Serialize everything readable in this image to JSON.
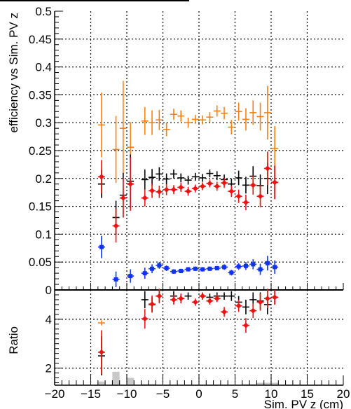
{
  "chart_data": [
    {
      "type": "scatter",
      "title": "",
      "ylabel": "efficiency vs Sim. PV z",
      "xlim": [
        -20,
        20
      ],
      "ylim": [
        0,
        0.5
      ],
      "y_ticks": [
        "0",
        "0.05",
        "0.1",
        "0.15",
        "0.2",
        "0.25",
        "0.3",
        "0.35",
        "0.4",
        "0.45",
        "0.5"
      ],
      "grid": true,
      "legend": "none",
      "series": [
        {
          "color": "#ff7f0e",
          "marker": "cross",
          "points": [
            {
              "x": -13.5,
              "y": 0.296,
              "e": 0.058
            },
            {
              "x": -11.5,
              "y": 0.252,
              "e": 0.06
            },
            {
              "x": -10.5,
              "y": 0.29,
              "e": 0.085
            },
            {
              "x": -9.5,
              "y": 0.256,
              "e": 0.045
            },
            {
              "x": -7.5,
              "y": 0.303,
              "e": 0.025
            },
            {
              "x": -6.5,
              "y": 0.3,
              "e": 0.022
            },
            {
              "x": -5.5,
              "y": 0.305,
              "e": 0.018
            },
            {
              "x": -4.5,
              "y": 0.288,
              "e": 0.012
            },
            {
              "x": -3.5,
              "y": 0.315,
              "e": 0.01
            },
            {
              "x": -2.5,
              "y": 0.312,
              "e": 0.01
            },
            {
              "x": -1.5,
              "y": 0.3,
              "e": 0.009
            },
            {
              "x": -0.5,
              "y": 0.306,
              "e": 0.008
            },
            {
              "x": 0.5,
              "y": 0.305,
              "e": 0.008
            },
            {
              "x": 1.5,
              "y": 0.31,
              "e": 0.009
            },
            {
              "x": 2.5,
              "y": 0.321,
              "e": 0.01
            },
            {
              "x": 3.5,
              "y": 0.317,
              "e": 0.011
            },
            {
              "x": 4.5,
              "y": 0.292,
              "e": 0.013
            },
            {
              "x": 5.5,
              "y": 0.32,
              "e": 0.016
            },
            {
              "x": 6.5,
              "y": 0.306,
              "e": 0.02
            },
            {
              "x": 7.5,
              "y": 0.318,
              "e": 0.022
            },
            {
              "x": 8.5,
              "y": 0.311,
              "e": 0.025
            },
            {
              "x": 9.5,
              "y": 0.318,
              "e": 0.048
            },
            {
              "x": 10.5,
              "y": 0.254,
              "e": 0.04
            }
          ]
        },
        {
          "color": "#000000",
          "marker": "cross",
          "points": [
            {
              "x": -13.5,
              "y": 0.19,
              "e": 0.025
            },
            {
              "x": -11.5,
              "y": 0.13,
              "e": 0.03
            },
            {
              "x": -10.5,
              "y": 0.17,
              "e": 0.04
            },
            {
              "x": -9.5,
              "y": 0.195,
              "e": 0.048
            },
            {
              "x": -7.5,
              "y": 0.198,
              "e": 0.018
            },
            {
              "x": -6.5,
              "y": 0.202,
              "e": 0.015
            },
            {
              "x": -5.5,
              "y": 0.208,
              "e": 0.012
            },
            {
              "x": -4.5,
              "y": 0.199,
              "e": 0.01
            },
            {
              "x": -3.5,
              "y": 0.208,
              "e": 0.008
            },
            {
              "x": -2.5,
              "y": 0.201,
              "e": 0.008
            },
            {
              "x": -1.5,
              "y": 0.197,
              "e": 0.008
            },
            {
              "x": -0.5,
              "y": 0.203,
              "e": 0.007
            },
            {
              "x": 0.5,
              "y": 0.201,
              "e": 0.007
            },
            {
              "x": 1.5,
              "y": 0.209,
              "e": 0.007
            },
            {
              "x": 2.5,
              "y": 0.205,
              "e": 0.008
            },
            {
              "x": 3.5,
              "y": 0.198,
              "e": 0.009
            },
            {
              "x": 4.5,
              "y": 0.19,
              "e": 0.01
            },
            {
              "x": 5.5,
              "y": 0.201,
              "e": 0.013
            },
            {
              "x": 6.5,
              "y": 0.188,
              "e": 0.015
            },
            {
              "x": 7.5,
              "y": 0.204,
              "e": 0.018
            },
            {
              "x": 8.5,
              "y": 0.187,
              "e": 0.02
            },
            {
              "x": 9.5,
              "y": 0.2,
              "e": 0.028
            },
            {
              "x": 10.5,
              "y": 0.193,
              "e": 0.03
            }
          ]
        },
        {
          "color": "#ee1111",
          "marker": "diamond",
          "points": [
            {
              "x": -13.5,
              "y": 0.203,
              "e": 0.03
            },
            {
              "x": -11.5,
              "y": 0.115,
              "e": 0.03
            },
            {
              "x": -10.5,
              "y": 0.165,
              "e": 0.035
            },
            {
              "x": -9.5,
              "y": 0.19,
              "e": 0.048
            },
            {
              "x": -7.5,
              "y": 0.165,
              "e": 0.015
            },
            {
              "x": -6.5,
              "y": 0.178,
              "e": 0.013
            },
            {
              "x": -5.5,
              "y": 0.176,
              "e": 0.011
            },
            {
              "x": -4.5,
              "y": 0.18,
              "e": 0.01
            },
            {
              "x": -3.5,
              "y": 0.18,
              "e": 0.008
            },
            {
              "x": -2.5,
              "y": 0.184,
              "e": 0.008
            },
            {
              "x": -1.5,
              "y": 0.177,
              "e": 0.008
            },
            {
              "x": -0.5,
              "y": 0.182,
              "e": 0.007
            },
            {
              "x": 0.5,
              "y": 0.186,
              "e": 0.007
            },
            {
              "x": 1.5,
              "y": 0.191,
              "e": 0.007
            },
            {
              "x": 2.5,
              "y": 0.186,
              "e": 0.008
            },
            {
              "x": 3.5,
              "y": 0.192,
              "e": 0.009
            },
            {
              "x": 4.5,
              "y": 0.177,
              "e": 0.01
            },
            {
              "x": 5.5,
              "y": 0.168,
              "e": 0.012
            },
            {
              "x": 6.5,
              "y": 0.157,
              "e": 0.014
            },
            {
              "x": 7.5,
              "y": 0.188,
              "e": 0.017
            },
            {
              "x": 8.5,
              "y": 0.168,
              "e": 0.02
            },
            {
              "x": 9.5,
              "y": 0.218,
              "e": 0.03
            },
            {
              "x": 10.5,
              "y": 0.193,
              "e": 0.03
            }
          ]
        },
        {
          "color": "#1133ee",
          "marker": "square",
          "points": [
            {
              "x": -13.5,
              "y": 0.077,
              "e": 0.02
            },
            {
              "x": -11.5,
              "y": 0.019,
              "e": 0.014
            },
            {
              "x": -9.5,
              "y": 0.025,
              "e": 0.012
            },
            {
              "x": -7.5,
              "y": 0.03,
              "e": 0.01
            },
            {
              "x": -6.5,
              "y": 0.038,
              "e": 0.008
            },
            {
              "x": -5.5,
              "y": 0.044,
              "e": 0.006
            },
            {
              "x": -4.5,
              "y": 0.039,
              "e": 0.005
            },
            {
              "x": -3.5,
              "y": 0.033,
              "e": 0.004
            },
            {
              "x": -2.5,
              "y": 0.034,
              "e": 0.004
            },
            {
              "x": -1.5,
              "y": 0.037,
              "e": 0.004
            },
            {
              "x": -0.5,
              "y": 0.038,
              "e": 0.004
            },
            {
              "x": 0.5,
              "y": 0.037,
              "e": 0.004
            },
            {
              "x": 1.5,
              "y": 0.038,
              "e": 0.004
            },
            {
              "x": 2.5,
              "y": 0.039,
              "e": 0.004
            },
            {
              "x": 3.5,
              "y": 0.041,
              "e": 0.005
            },
            {
              "x": 4.5,
              "y": 0.031,
              "e": 0.005
            },
            {
              "x": 5.5,
              "y": 0.042,
              "e": 0.006
            },
            {
              "x": 6.5,
              "y": 0.043,
              "e": 0.007
            },
            {
              "x": 7.5,
              "y": 0.046,
              "e": 0.009
            },
            {
              "x": 8.5,
              "y": 0.037,
              "e": 0.01
            },
            {
              "x": 9.5,
              "y": 0.048,
              "e": 0.013
            },
            {
              "x": 10.5,
              "y": 0.041,
              "e": 0.012
            }
          ]
        }
      ]
    },
    {
      "type": "scatter",
      "title": "",
      "ylabel": "Ratio",
      "xlabel": "Sim. PV z (cm)",
      "xlim": [
        -20,
        20
      ],
      "ylim": [
        1.3,
        5.2
      ],
      "x_ticks": [
        "−20",
        "−15",
        "−10",
        "−5",
        "0",
        "5",
        "10",
        "15",
        "20"
      ],
      "y_ticks": [
        "2",
        "4"
      ],
      "grid": true,
      "legend": "none",
      "histogram": {
        "color": "#c8c8c8",
        "bins": [
          {
            "x0": -14,
            "x1": -13,
            "h": 1.45
          },
          {
            "x0": -12,
            "x1": -11,
            "h": 1.85
          },
          {
            "x0": -10,
            "x1": -9,
            "h": 1.6
          },
          {
            "x0": -8,
            "x1": -6,
            "h": 1.35
          },
          {
            "x0": -6,
            "x1": -4,
            "h": 1.32
          },
          {
            "x0": -4,
            "x1": -2,
            "h": 1.3
          },
          {
            "x0": -2,
            "x1": 3,
            "h": 1.28
          },
          {
            "x0": 3,
            "x1": 6,
            "h": 1.3
          },
          {
            "x0": 6,
            "x1": 8,
            "h": 1.34
          },
          {
            "x0": 8,
            "x1": 11,
            "h": 1.4
          }
        ]
      },
      "series": [
        {
          "color": "#ff7f0e",
          "marker": "cross",
          "points": [
            {
              "x": -13.5,
              "y": 3.85,
              "e": 0.1
            }
          ]
        },
        {
          "color": "#000000",
          "marker": "cross",
          "points": [
            {
              "x": -13.5,
              "y": 2.5,
              "e": 0.8
            },
            {
              "x": -7.5,
              "y": 4.8,
              "e": 0.35
            },
            {
              "x": -6.5,
              "y": 4.6,
              "e": 0.3
            },
            {
              "x": -5.5,
              "y": 4.95,
              "e": 0.25
            },
            {
              "x": -3.5,
              "y": 4.95,
              "e": 0.2
            },
            {
              "x": -2.5,
              "y": 4.85,
              "e": 0.15
            },
            {
              "x": -1.5,
              "y": 4.95,
              "e": 0.15
            },
            {
              "x": 0.5,
              "y": 4.95,
              "e": 0.15
            },
            {
              "x": 1.5,
              "y": 4.9,
              "e": 0.15
            },
            {
              "x": 2.5,
              "y": 4.95,
              "e": 0.15
            },
            {
              "x": 3.5,
              "y": 4.95,
              "e": 0.15
            },
            {
              "x": 4.5,
              "y": 4.95,
              "e": 0.2
            },
            {
              "x": 5.5,
              "y": 4.7,
              "e": 0.25
            },
            {
              "x": 6.5,
              "y": 4.5,
              "e": 0.3
            },
            {
              "x": 7.5,
              "y": 4.8,
              "e": 0.3
            },
            {
              "x": 8.5,
              "y": 4.75,
              "e": 0.35
            },
            {
              "x": 9.5,
              "y": 4.6,
              "e": 0.4
            },
            {
              "x": 10.5,
              "y": 4.9,
              "e": 0.3
            }
          ]
        },
        {
          "color": "#ee1111",
          "marker": "diamond",
          "points": [
            {
              "x": -13.5,
              "y": 2.65,
              "e": 0.9
            },
            {
              "x": -7.5,
              "y": 4.02,
              "e": 0.4
            },
            {
              "x": -6.5,
              "y": 4.62,
              "e": 0.35
            },
            {
              "x": -5.5,
              "y": 4.95,
              "e": 0.3
            },
            {
              "x": -3.5,
              "y": 4.8,
              "e": 0.2
            },
            {
              "x": -2.5,
              "y": 4.85,
              "e": 0.2
            },
            {
              "x": -0.5,
              "y": 4.7,
              "e": 0.15
            },
            {
              "x": 0.5,
              "y": 4.95,
              "e": 0.15
            },
            {
              "x": 1.5,
              "y": 4.75,
              "e": 0.15
            },
            {
              "x": 2.5,
              "y": 4.85,
              "e": 0.15
            },
            {
              "x": 3.5,
              "y": 4.3,
              "e": 0.2
            },
            {
              "x": 5.5,
              "y": 4.55,
              "e": 0.25
            },
            {
              "x": 6.5,
              "y": 3.75,
              "e": 0.3
            },
            {
              "x": 7.5,
              "y": 4.35,
              "e": 0.3
            },
            {
              "x": 8.5,
              "y": 4.7,
              "e": 0.35
            },
            {
              "x": 9.5,
              "y": 4.85,
              "e": 0.4
            },
            {
              "x": 10.5,
              "y": 4.9,
              "e": 0.3
            }
          ]
        }
      ]
    }
  ]
}
